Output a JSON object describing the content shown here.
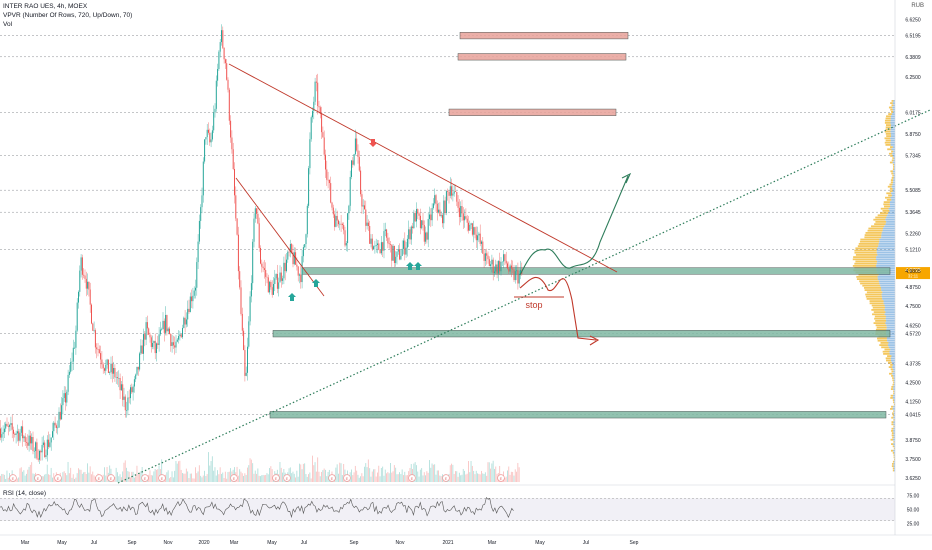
{
  "header": {
    "symbol_line": "INTER RAO UES, 4h, MOEX",
    "indicator_line": "VPVR (Number Of Rows, 720, Up/Down, 70)",
    "volume_line": "Vol",
    "rsi_line": "RSI (14, close)",
    "currency": "RUB"
  },
  "colors": {
    "up": "#26a69a",
    "down": "#ef5350",
    "trendline": "#c0392b",
    "support_zone": "#7fb8a3",
    "resistance_zone": "#e8a29a",
    "dotted_trend": "#2e7d5b",
    "price_tag": "#f7a600",
    "rsi_line": "#555555"
  },
  "annotations": {
    "stop_label": "stop",
    "price_tag": "4.9795",
    "price_tag_sub": "32:11"
  },
  "chart_data": {
    "type": "candlestick",
    "x_ticks": [
      "Mar",
      "May",
      "Jul",
      "Sep",
      "Nov",
      "2020",
      "Mar",
      "May",
      "Jul",
      "Sep",
      "Nov",
      "2021",
      "Mar",
      "May",
      "Jul",
      "Sep"
    ],
    "y_ticks": [
      "6.6250",
      "6.5195",
      "6.3809",
      "6.2500",
      "6.0175",
      "5.8750",
      "5.7345",
      "5.5085",
      "5.3645",
      "5.2260",
      "5.1210",
      "4.9805",
      "4.8750",
      "4.7500",
      "4.6250",
      "4.5720",
      "4.3735",
      "4.2500",
      "4.1250",
      "4.0415",
      "3.8750",
      "3.7500",
      "3.6250"
    ],
    "ylim": [
      3.6,
      6.7
    ],
    "rsi_ticks": [
      "75.00",
      "50.00",
      "25.00"
    ],
    "rsi_lim": [
      10,
      90
    ],
    "path_points": [
      [
        0,
        3.95
      ],
      [
        4,
        3.92
      ],
      [
        8,
        3.78
      ],
      [
        10,
        3.88
      ],
      [
        13,
        4.15
      ],
      [
        15,
        4.55
      ],
      [
        16,
        5.05
      ],
      [
        17,
        4.95
      ],
      [
        19,
        4.52
      ],
      [
        21,
        4.35
      ],
      [
        23,
        4.3
      ],
      [
        25,
        4.1
      ],
      [
        27,
        4.25
      ],
      [
        29,
        4.6
      ],
      [
        31,
        4.45
      ],
      [
        33,
        4.65
      ],
      [
        35,
        4.45
      ],
      [
        37,
        4.7
      ],
      [
        39,
        4.9
      ],
      [
        40,
        5.35
      ],
      [
        41,
        5.9
      ],
      [
        42,
        5.8
      ],
      [
        43,
        6.1
      ],
      [
        44,
        6.55
      ],
      [
        45,
        6.35
      ],
      [
        46,
        5.9
      ],
      [
        47,
        5.35
      ],
      [
        48,
        4.75
      ],
      [
        49,
        4.2
      ],
      [
        50,
        4.85
      ],
      [
        51,
        5.45
      ],
      [
        52,
        5.05
      ],
      [
        54,
        4.85
      ],
      [
        56,
        4.95
      ],
      [
        58,
        5.1
      ],
      [
        60,
        4.95
      ],
      [
        61,
        5.2
      ],
      [
        62,
        5.9
      ],
      [
        63,
        6.2
      ],
      [
        64,
        5.95
      ],
      [
        65,
        5.7
      ],
      [
        66,
        5.45
      ],
      [
        67,
        5.3
      ],
      [
        68,
        5.35
      ],
      [
        69,
        5.15
      ],
      [
        70,
        5.6
      ],
      [
        71,
        5.85
      ],
      [
        72,
        5.5
      ],
      [
        73,
        5.3
      ],
      [
        75,
        5.1
      ],
      [
        77,
        5.2
      ],
      [
        79,
        5.05
      ],
      [
        81,
        5.15
      ],
      [
        83,
        5.35
      ],
      [
        85,
        5.2
      ],
      [
        87,
        5.45
      ],
      [
        88,
        5.3
      ],
      [
        90,
        5.55
      ],
      [
        91,
        5.45
      ],
      [
        93,
        5.3
      ],
      [
        95,
        5.25
      ],
      [
        97,
        5.05
      ],
      [
        99,
        5.0
      ],
      [
        101,
        5.05
      ],
      [
        102,
        4.95
      ]
    ],
    "series": [
      {
        "name": "RSI (14, close)",
        "values": [
          52,
          48,
          55,
          42,
          60,
          45,
          38,
          58,
          66,
          50,
          44,
          62,
          55,
          47,
          70,
          41,
          52,
          60,
          48,
          56,
          44,
          63,
          51,
          46,
          58,
          40,
          55,
          67,
          49,
          53,
          45,
          61,
          52,
          38,
          59,
          47,
          64,
          50,
          43,
          57,
          48,
          55,
          62,
          41,
          53,
          49,
          58,
          45,
          60,
          52,
          46,
          56,
          63,
          44,
          51,
          57,
          42,
          54,
          48,
          60,
          50,
          47,
          58,
          44,
          55,
          61,
          49,
          52,
          46,
          57,
          43,
          53,
          72,
          47,
          55,
          42,
          50
        ]
      }
    ],
    "volume_values": [
      12,
      18,
      9,
      22,
      30,
      14,
      11,
      25,
      19,
      16,
      28,
      13,
      21,
      35,
      17,
      12,
      24,
      20,
      15,
      31,
      18,
      26,
      14,
      22,
      40,
      19,
      16,
      33,
      23,
      12,
      27,
      18,
      45,
      21,
      15,
      29,
      24,
      17,
      36,
      20,
      13,
      26,
      19,
      32,
      22,
      16,
      28,
      14,
      38,
      21,
      17,
      25,
      30,
      18,
      23,
      15,
      34,
      20,
      26,
      19,
      42,
      22,
      16,
      29,
      24,
      18,
      31,
      20,
      14,
      27,
      23,
      19,
      35,
      21,
      17,
      30,
      25,
      18,
      22,
      28
    ]
  }
}
